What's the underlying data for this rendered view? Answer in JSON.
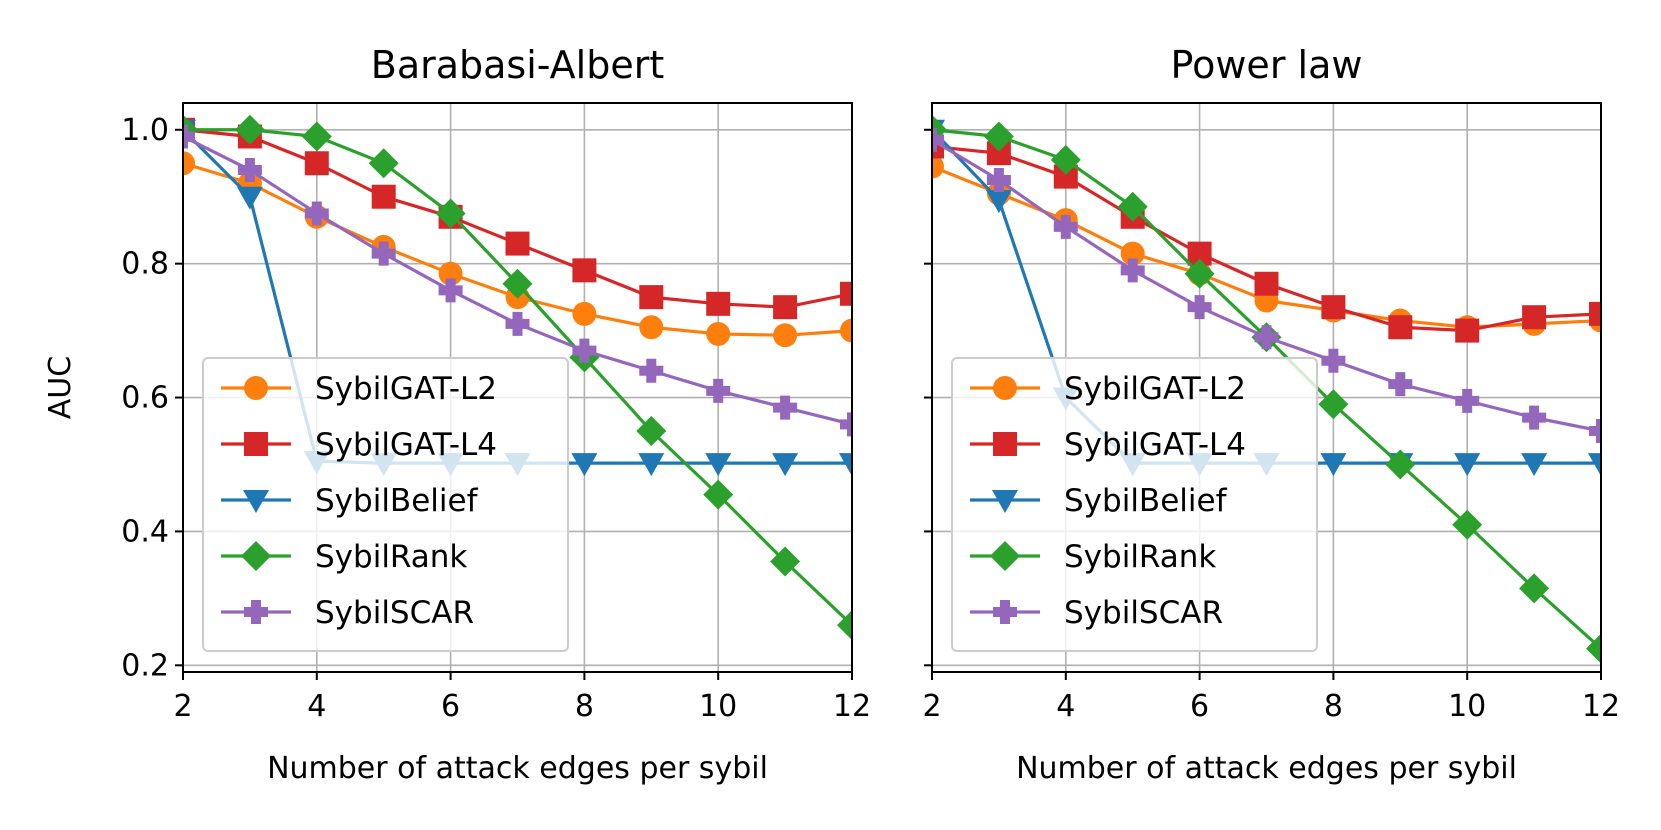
{
  "chart_data": [
    {
      "type": "line",
      "title": "Barabasi-Albert",
      "xlabel": "Number of attack edges per sybil",
      "ylabel": "AUC",
      "xlim": [
        2,
        12
      ],
      "ylim": [
        0.19,
        1.04
      ],
      "xticks": [
        2,
        4,
        6,
        8,
        10,
        12
      ],
      "yticks": [
        "0.2",
        "0.4",
        "0.6",
        "0.8",
        "1.0"
      ],
      "grid": true,
      "legend_position": "lower-left",
      "x": [
        2,
        3,
        4,
        5,
        6,
        7,
        8,
        9,
        10,
        11,
        12
      ],
      "series": [
        {
          "name": "SybilGAT-L2",
          "color": "#ff7f0e",
          "marker": "circle",
          "values": [
            0.95,
            0.92,
            0.87,
            0.825,
            0.785,
            0.75,
            0.725,
            0.705,
            0.695,
            0.693,
            0.7
          ]
        },
        {
          "name": "SybilGAT-L4",
          "color": "#d62728",
          "marker": "square",
          "values": [
            1.0,
            0.99,
            0.95,
            0.9,
            0.87,
            0.83,
            0.79,
            0.75,
            0.74,
            0.735,
            0.755
          ]
        },
        {
          "name": "SybilBelief",
          "color": "#1f77b4",
          "marker": "triangle-down",
          "values": [
            1.0,
            0.9,
            0.505,
            0.502,
            0.502,
            0.502,
            0.502,
            0.502,
            0.502,
            0.502,
            0.502
          ]
        },
        {
          "name": "SybilRank",
          "color": "#2ca02c",
          "marker": "diamond",
          "values": [
            1.0,
            1.0,
            0.99,
            0.95,
            0.875,
            0.77,
            0.66,
            0.55,
            0.455,
            0.355,
            0.26
          ]
        },
        {
          "name": "SybilSCAR",
          "color": "#9467bd",
          "marker": "plus",
          "values": [
            0.99,
            0.94,
            0.875,
            0.815,
            0.76,
            0.71,
            0.67,
            0.64,
            0.61,
            0.585,
            0.56
          ]
        }
      ]
    },
    {
      "type": "line",
      "title": "Power law",
      "xlabel": "Number of attack edges per sybil",
      "ylabel": "",
      "xlim": [
        2,
        12
      ],
      "ylim": [
        0.19,
        1.04
      ],
      "xticks": [
        2,
        4,
        6,
        8,
        10,
        12
      ],
      "yticks": [
        "0.2",
        "0.4",
        "0.6",
        "0.8",
        "1.0"
      ],
      "grid": true,
      "legend_position": "lower-left",
      "x": [
        2,
        3,
        4,
        5,
        6,
        7,
        8,
        9,
        10,
        11,
        12
      ],
      "series": [
        {
          "name": "SybilGAT-L2",
          "color": "#ff7f0e",
          "marker": "circle",
          "values": [
            0.945,
            0.905,
            0.865,
            0.815,
            0.785,
            0.745,
            0.73,
            0.715,
            0.705,
            0.71,
            0.715
          ]
        },
        {
          "name": "SybilGAT-L4",
          "color": "#d62728",
          "marker": "square",
          "values": [
            0.975,
            0.965,
            0.93,
            0.87,
            0.815,
            0.77,
            0.735,
            0.705,
            0.7,
            0.72,
            0.725
          ]
        },
        {
          "name": "SybilBelief",
          "color": "#1f77b4",
          "marker": "triangle-down",
          "values": [
            1.0,
            0.895,
            0.6,
            0.502,
            0.502,
            0.502,
            0.502,
            0.502,
            0.502,
            0.502,
            0.502
          ]
        },
        {
          "name": "SybilRank",
          "color": "#2ca02c",
          "marker": "diamond",
          "values": [
            1.0,
            0.99,
            0.955,
            0.885,
            0.785,
            0.69,
            0.59,
            0.5,
            0.41,
            0.315,
            0.225
          ]
        },
        {
          "name": "SybilSCAR",
          "color": "#9467bd",
          "marker": "plus",
          "values": [
            0.985,
            0.925,
            0.855,
            0.79,
            0.735,
            0.69,
            0.655,
            0.62,
            0.595,
            0.57,
            0.55
          ]
        }
      ]
    }
  ]
}
